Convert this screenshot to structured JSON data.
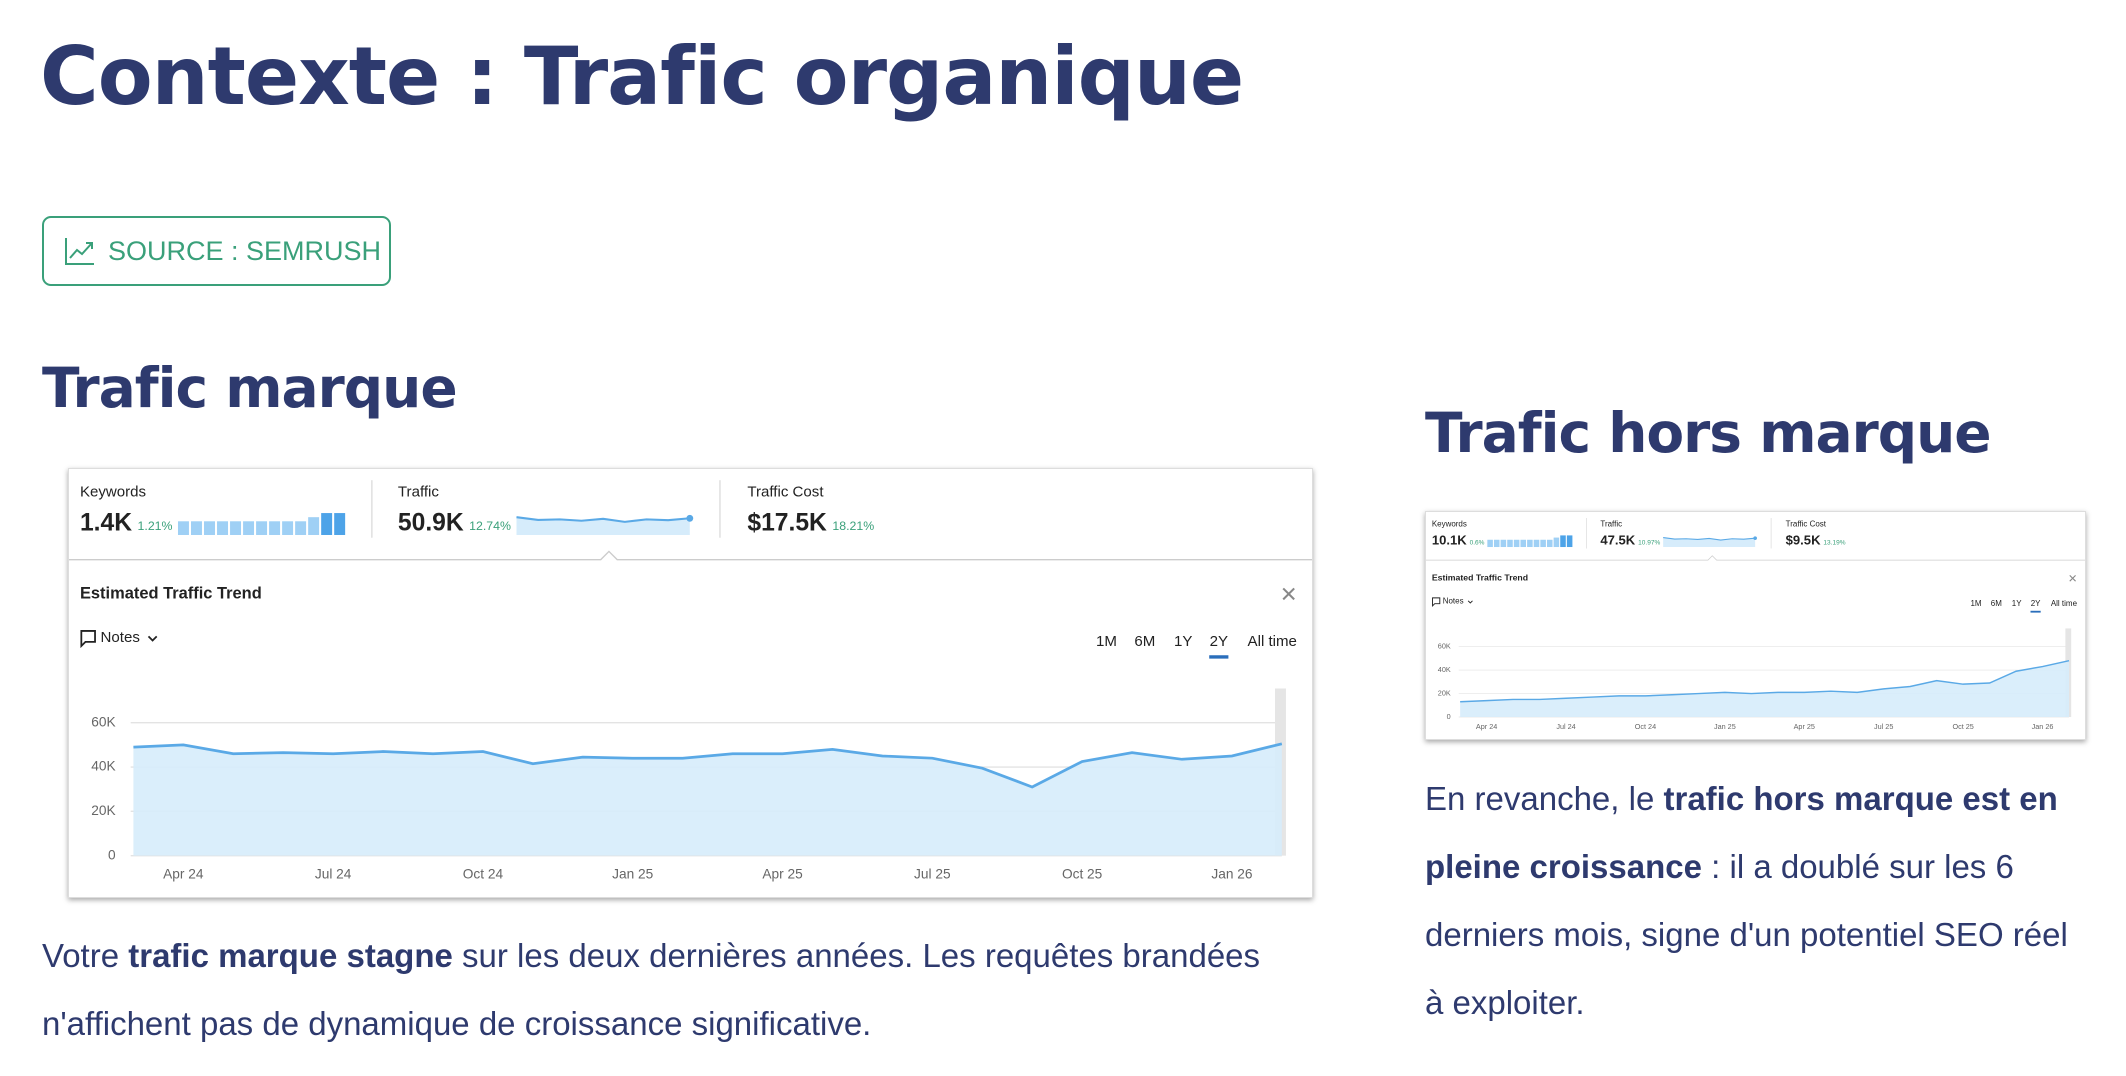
{
  "header": {
    "title": "Contexte : Trafic organique"
  },
  "source_badge": "SOURCE : SEMRUSH",
  "panels": [
    {
      "heading": "Trafic marque",
      "widget": {
        "metrics": [
          {
            "label": "Keywords",
            "value": "1.4K",
            "change": "1.21%"
          },
          {
            "label": "Traffic",
            "value": "50.9K",
            "change": "12.74%"
          },
          {
            "label": "Traffic Cost",
            "value": "$17.5K",
            "change": "18.21%"
          }
        ],
        "trend_title": "Estimated Traffic Trend",
        "notes": "Notes",
        "ranges": [
          "1M",
          "6M",
          "1Y",
          "2Y",
          "All time"
        ],
        "chart": {
          "type": "line",
          "color": "#5aa9e6",
          "categories": [
            null,
            "Apr 24",
            null,
            null,
            "Jul 24",
            null,
            null,
            "Oct 24",
            null,
            null,
            "Jan 25",
            null,
            null,
            "Apr 25",
            null,
            null,
            "Jul 25",
            null,
            null,
            "Oct 25",
            null,
            null,
            "Jan 26",
            null
          ],
          "values": [
            49000,
            50000,
            46000,
            46500,
            46000,
            47000,
            46000,
            47000,
            41500,
            44500,
            44000,
            44000,
            46000,
            46000,
            48000,
            45000,
            44000,
            39500,
            31000,
            42500,
            46500,
            43500,
            45000,
            50500
          ],
          "ylim": [
            0,
            60000
          ],
          "yticks": [
            0,
            {
              "value": 20000,
              "label": "20K"
            },
            {
              "value": 40000,
              "label": "40K"
            },
            {
              "value": 60000,
              "label": "60K"
            }
          ],
          "grid": true
        }
      },
      "paragraph": [
        {
          "text": "Votre "
        },
        {
          "text": "trafic marque stagne",
          "bold": true
        },
        {
          "text": " sur les deux dernières années. Les requêtes brandées n'affichent pas de dynamique de croissance significative."
        }
      ]
    },
    {
      "heading": "Trafic hors marque",
      "widget": {
        "metrics": [
          {
            "label": "Keywords",
            "value": "10.1K",
            "change": "0.6%"
          },
          {
            "label": "Traffic",
            "value": "47.5K",
            "change": "10.97%"
          },
          {
            "label": "Traffic Cost",
            "value": "$9.5K",
            "change": "13.19%"
          }
        ],
        "trend_title": "Estimated Traffic Trend",
        "notes": "Notes",
        "ranges": [
          "1M",
          "6M",
          "1Y",
          "2Y",
          "All time"
        ],
        "chart": {
          "type": "line",
          "color": "#5aa9e6",
          "categories": [
            null,
            "Apr 24",
            null,
            null,
            "Jul 24",
            null,
            null,
            "Oct 24",
            null,
            null,
            "Jan 25",
            null,
            null,
            "Apr 25",
            null,
            null,
            "Jul 25",
            null,
            null,
            "Oct 25",
            null,
            null,
            "Jan 26",
            null
          ],
          "values": [
            13000,
            14000,
            15000,
            15000,
            16000,
            17000,
            18000,
            18000,
            19000,
            20000,
            21000,
            20000,
            21000,
            21000,
            22000,
            21000,
            24000,
            26000,
            31000,
            28000,
            29000,
            39000,
            43000,
            48000
          ],
          "ylim": [
            0,
            60000
          ],
          "yticks": [
            0,
            {
              "value": 20000,
              "label": "20K"
            },
            {
              "value": 40000,
              "label": "40K"
            },
            {
              "value": 60000,
              "label": "60K"
            }
          ],
          "grid": true
        }
      },
      "paragraph": [
        {
          "text": "En revanche, le "
        },
        {
          "text": "trafic hors marque est en pleine croissance",
          "bold": true
        },
        {
          "text": " : il a doublé sur les 6 derniers mois, signe d'un potentiel SEO réel à exploiter."
        }
      ]
    }
  ]
}
